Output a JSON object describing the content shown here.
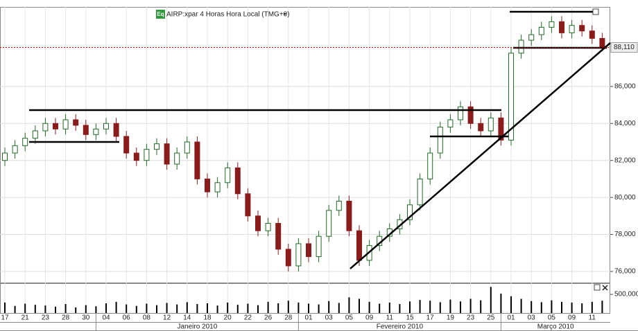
{
  "chart_data": {
    "type": "candlestick",
    "title": "AIRP:xpar 4 Horas Hora Local (TMG+0)",
    "icon_label": "Eq",
    "categories": [
      "17",
      null,
      "21",
      null,
      "23",
      null,
      "28",
      null,
      "30",
      null,
      "04",
      null,
      "06",
      null,
      "08",
      null,
      "12",
      null,
      "14",
      null,
      "18",
      null,
      "20",
      null,
      "22",
      null,
      "26",
      null,
      "28",
      null,
      "01",
      null,
      "03",
      null,
      "05",
      null,
      "09",
      null,
      "11",
      null,
      "15",
      null,
      "17",
      null,
      "19",
      null,
      "23",
      null,
      "25",
      null,
      "01",
      null,
      "03",
      null,
      "05",
      null,
      "09",
      null,
      "11",
      null
    ],
    "months": [
      "Janeiro 2010",
      "Fevereiro 2010",
      "Março 2010"
    ],
    "open": [
      82.0,
      82.4,
      82.8,
      83.2,
      83.6,
      84.0,
      83.7,
      84.2,
      83.9,
      83.4,
      83.7,
      84.0,
      83.3,
      82.4,
      82.0,
      82.6,
      82.9,
      81.8,
      82.4,
      83.0,
      81.0,
      80.3,
      80.8,
      81.6,
      80.2,
      79.0,
      78.2,
      78.6,
      77.2,
      76.3,
      77.5,
      76.8,
      77.9,
      79.3,
      79.8,
      78.2,
      76.6,
      77.4,
      77.9,
      78.3,
      78.8,
      79.6,
      81.0,
      82.4,
      83.8,
      84.2,
      84.9,
      84.0,
      83.6,
      84.3,
      83.1,
      87.8,
      88.5,
      88.8,
      89.2,
      89.5,
      88.9,
      89.3,
      89.0,
      88.6
    ],
    "high": [
      82.7,
      83.1,
      83.5,
      83.9,
      84.3,
      84.3,
      84.5,
      84.5,
      84.2,
      84.0,
      84.3,
      84.3,
      83.6,
      82.7,
      82.9,
      83.2,
      83.2,
      82.7,
      83.3,
      83.3,
      81.3,
      81.1,
      81.9,
      81.9,
      80.5,
      79.3,
      78.9,
      78.9,
      77.5,
      77.8,
      77.8,
      78.2,
      79.6,
      80.1,
      80.1,
      78.5,
      77.7,
      78.2,
      78.6,
      79.1,
      79.9,
      81.3,
      82.7,
      84.1,
      84.5,
      85.2,
      85.2,
      84.3,
      84.6,
      84.6,
      88.1,
      88.8,
      89.1,
      89.5,
      89.8,
      89.8,
      89.6,
      89.6,
      89.3,
      88.9
    ],
    "low": [
      81.7,
      82.1,
      82.5,
      82.9,
      83.3,
      83.4,
      83.4,
      83.6,
      83.1,
      83.1,
      83.4,
      83.0,
      82.1,
      81.7,
      81.7,
      82.3,
      81.5,
      81.5,
      82.1,
      80.7,
      80.0,
      80.0,
      80.5,
      79.9,
      78.7,
      77.9,
      77.9,
      76.9,
      76.0,
      76.0,
      76.5,
      76.5,
      77.6,
      79.0,
      77.9,
      76.3,
      76.3,
      77.1,
      77.6,
      78.0,
      78.5,
      79.3,
      80.7,
      82.1,
      83.5,
      83.9,
      83.7,
      83.3,
      83.3,
      82.8,
      82.8,
      87.5,
      88.2,
      88.5,
      88.9,
      88.6,
      88.6,
      88.7,
      88.3,
      87.9
    ],
    "close": [
      82.4,
      82.8,
      83.2,
      83.6,
      84.0,
      83.7,
      84.2,
      83.9,
      83.4,
      83.7,
      84.0,
      83.3,
      82.4,
      82.0,
      82.6,
      82.9,
      81.8,
      82.4,
      83.0,
      81.0,
      80.3,
      80.8,
      81.6,
      80.2,
      79.0,
      78.2,
      78.6,
      77.2,
      76.3,
      77.5,
      76.8,
      77.9,
      79.3,
      79.8,
      78.2,
      76.6,
      77.4,
      77.9,
      78.3,
      78.8,
      79.6,
      81.0,
      82.4,
      83.8,
      84.2,
      84.9,
      84.0,
      83.6,
      84.3,
      83.1,
      87.8,
      88.5,
      88.8,
      89.2,
      89.5,
      88.9,
      89.3,
      89.0,
      88.6,
      88.11
    ],
    "volume": [
      280000,
      190000,
      250000,
      220000,
      200000,
      170000,
      240000,
      150000,
      210000,
      180000,
      260000,
      300000,
      230000,
      190000,
      250000,
      210000,
      270000,
      230000,
      290000,
      240000,
      260000,
      200000,
      280000,
      220000,
      250000,
      210000,
      300000,
      260000,
      330000,
      280000,
      250000,
      230000,
      320000,
      270000,
      420000,
      380000,
      300000,
      250000,
      280000,
      240000,
      310000,
      350000,
      330000,
      290000,
      360000,
      310000,
      380000,
      340000,
      700000,
      520000,
      450000,
      380000,
      320000,
      290000,
      340000,
      300000,
      280000,
      260000,
      300000,
      330000
    ],
    "up_color": "#ffffff",
    "up_edge": "#1e6b22",
    "down_color": "#8b1c1c",
    "volume_color": "#000000",
    "ylim": [
      75.4,
      90.3
    ],
    "yticks": [
      {
        "value": 76,
        "label": "76,000"
      },
      {
        "value": 78,
        "label": "78,000"
      },
      {
        "value": 80,
        "label": "80,000"
      },
      {
        "value": 82,
        "label": "82,000"
      },
      {
        "value": 84,
        "label": "84,000"
      },
      {
        "value": 86,
        "label": "86,000"
      }
    ],
    "volume_ylim": [
      0,
      780000
    ],
    "volume_yticks": [
      {
        "value": 500000,
        "label": "500,000"
      }
    ],
    "last_price": {
      "value": 88.11,
      "label": "88,110",
      "color": "#cc0000"
    },
    "grid": true
  }
}
